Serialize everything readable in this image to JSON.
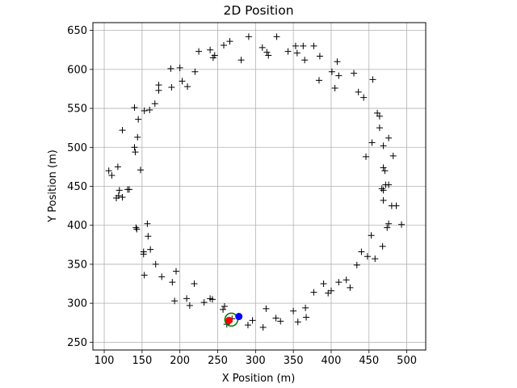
{
  "chart_data": {
    "type": "scatter",
    "title": "2D Position",
    "xlabel": "X Position (m)",
    "ylabel": "Y Position (m)",
    "xlim": [
      85,
      525
    ],
    "ylim": [
      240,
      660
    ],
    "xticks": [
      100,
      150,
      200,
      250,
      300,
      350,
      400,
      450,
      500
    ],
    "yticks": [
      250,
      300,
      350,
      400,
      450,
      500,
      550,
      600,
      650
    ],
    "grid": true,
    "series": [
      {
        "marker": "plus",
        "color": "#000000",
        "points": [
          [
            140,
            551
          ],
          [
            145,
            536
          ],
          [
            124,
            522
          ],
          [
            153,
            547
          ],
          [
            160,
            548
          ],
          [
            167,
            556
          ],
          [
            172,
            573
          ],
          [
            172,
            580
          ],
          [
            189,
            577
          ],
          [
            188,
            601
          ],
          [
            200,
            602
          ],
          [
            203,
            585
          ],
          [
            210,
            578
          ],
          [
            220,
            597
          ],
          [
            225,
            623
          ],
          [
            240,
            625
          ],
          [
            246,
            618
          ],
          [
            244,
            615
          ],
          [
            258,
            631
          ],
          [
            266,
            636
          ],
          [
            281,
            612
          ],
          [
            291,
            642
          ],
          [
            309,
            628
          ],
          [
            315,
            622
          ],
          [
            317,
            618
          ],
          [
            328,
            642
          ],
          [
            343,
            623
          ],
          [
            353,
            630
          ],
          [
            355,
            621
          ],
          [
            363,
            630
          ],
          [
            365,
            612
          ],
          [
            377,
            630
          ],
          [
            385,
            617
          ],
          [
            384,
            586
          ],
          [
            401,
            597
          ],
          [
            405,
            576
          ],
          [
            408,
            610
          ],
          [
            410,
            592
          ],
          [
            430,
            595
          ],
          [
            436,
            571
          ],
          [
            443,
            564
          ],
          [
            455,
            587
          ],
          [
            461,
            544
          ],
          [
            464,
            540
          ],
          [
            464,
            525
          ],
          [
            469,
            502
          ],
          [
            454,
            506
          ],
          [
            446,
            488
          ],
          [
            482,
            489
          ],
          [
            476,
            512
          ],
          [
            469,
            474
          ],
          [
            471,
            470
          ],
          [
            467,
            447
          ],
          [
            469,
            445
          ],
          [
            472,
            452
          ],
          [
            476,
            452
          ],
          [
            469,
            432
          ],
          [
            480,
            425
          ],
          [
            486,
            425
          ],
          [
            493,
            401
          ],
          [
            474,
            397
          ],
          [
            476,
            402
          ],
          [
            468,
            373
          ],
          [
            458,
            357
          ],
          [
            453,
            387
          ],
          [
            448,
            360
          ],
          [
            440,
            366
          ],
          [
            434,
            349
          ],
          [
            425,
            320
          ],
          [
            420,
            330
          ],
          [
            410,
            327
          ],
          [
            400,
            316
          ],
          [
            396,
            313
          ],
          [
            390,
            325
          ],
          [
            377,
            314
          ],
          [
            367,
            282
          ],
          [
            366,
            294
          ],
          [
            356,
            276
          ],
          [
            350,
            290
          ],
          [
            333,
            277
          ],
          [
            327,
            281
          ],
          [
            314,
            293
          ],
          [
            310,
            269
          ],
          [
            296,
            278
          ],
          [
            290,
            272
          ],
          [
            269,
            280
          ],
          [
            262,
            273
          ],
          [
            257,
            292
          ],
          [
            259,
            296
          ],
          [
            240,
            306
          ],
          [
            243,
            305
          ],
          [
            232,
            301
          ],
          [
            219,
            325
          ],
          [
            213,
            297
          ],
          [
            209,
            306
          ],
          [
            195,
            341
          ],
          [
            193,
            303
          ],
          [
            190,
            327
          ],
          [
            176,
            334
          ],
          [
            168,
            350
          ],
          [
            161,
            369
          ],
          [
            152,
            366
          ],
          [
            152,
            363
          ],
          [
            153,
            336
          ],
          [
            158,
            386
          ],
          [
            157,
            402
          ],
          [
            143,
            395
          ],
          [
            142,
            397
          ],
          [
            148,
            471
          ],
          [
            131,
            446
          ],
          [
            133,
            446
          ],
          [
            119,
            438
          ],
          [
            120,
            445
          ],
          [
            124,
            436
          ],
          [
            116,
            435
          ],
          [
            110,
            464
          ],
          [
            106,
            470
          ],
          [
            118,
            475
          ],
          [
            140,
            500
          ],
          [
            141,
            494
          ],
          [
            144,
            513
          ]
        ]
      }
    ],
    "overlays": {
      "circle": {
        "cx": 268,
        "cy": 279,
        "r": 8.5,
        "color": "#008000"
      },
      "red_point": {
        "x": 265,
        "y": 278,
        "color": "#ff0000"
      },
      "blue_point": {
        "x": 278,
        "y": 283,
        "color": "#0000ff"
      }
    }
  }
}
